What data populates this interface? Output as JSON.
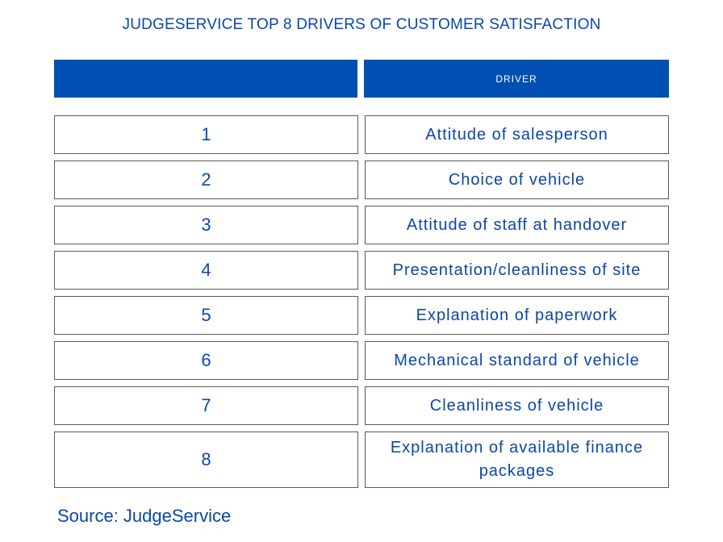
{
  "title": "JUDGESERVICE TOP 8 DRIVERS OF CUSTOMER SATISFACTION",
  "table": {
    "headers": [
      "",
      "DRIVER"
    ],
    "rows": [
      {
        "rank": "1",
        "driver": "Attitude of salesperson"
      },
      {
        "rank": "2",
        "driver": "Choice of vehicle"
      },
      {
        "rank": "3",
        "driver": "Attitude of staff at handover"
      },
      {
        "rank": "4",
        "driver": "Presentation/cleanliness of site"
      },
      {
        "rank": "5",
        "driver": "Explanation of paperwork"
      },
      {
        "rank": "6",
        "driver": "Mechanical standard of vehicle"
      },
      {
        "rank": "7",
        "driver": "Cleanliness of vehicle"
      },
      {
        "rank": "8",
        "driver": "Explanation of available finance packages"
      }
    ]
  },
  "source": "Source: JudgeService",
  "colors": {
    "header_bg": "#024fb3",
    "text": "#0a47a9",
    "border": "#5a5a5a"
  }
}
